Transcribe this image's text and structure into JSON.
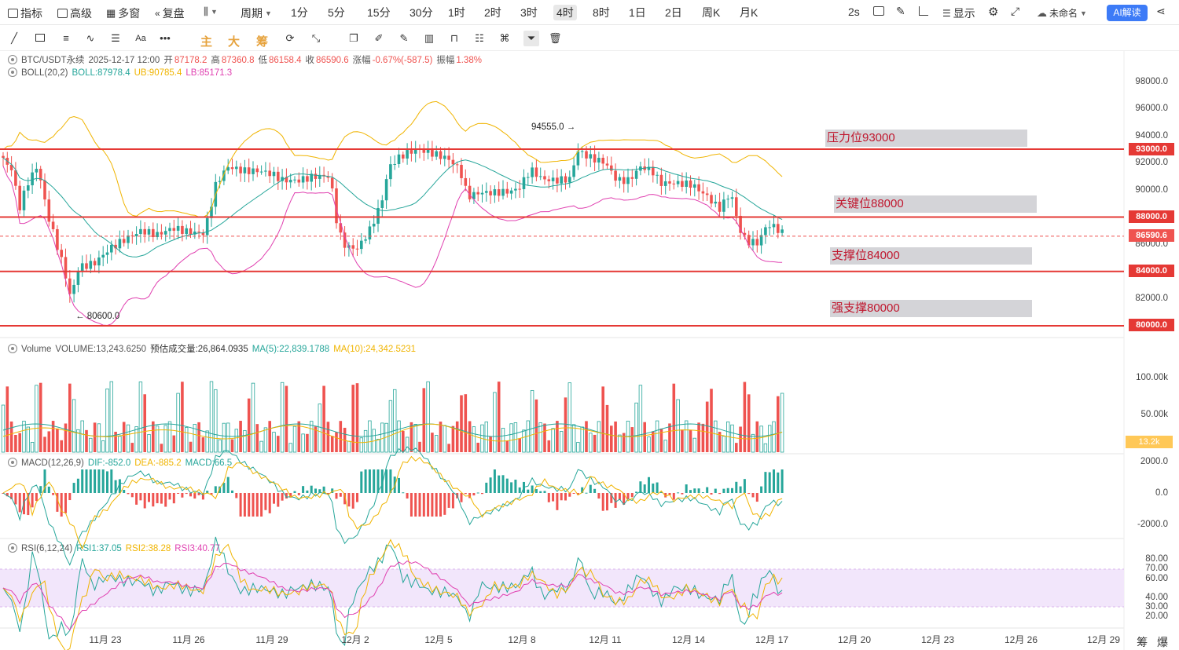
{
  "toolbar": {
    "indicators_label": "指标",
    "advanced_label": "高级",
    "multiwin_label": "多窗",
    "replay_label": "复盘",
    "period_label": "周期",
    "periods": [
      "1分",
      "5分",
      "15分",
      "30分",
      "1时",
      "2时",
      "3时",
      "4时",
      "8时",
      "1日",
      "2日",
      "周K",
      "月K"
    ],
    "active_period": "4时",
    "refresh_label": "2s",
    "display_label": "显示",
    "unnamed_label": "未命名",
    "ai_label": "AI解读"
  },
  "drawbar": {
    "main_label": "主",
    "big_label": "大",
    "chip_label": "筹"
  },
  "legend": {
    "symbol": "BTC/USDT永续",
    "datetime": "2025-12-17 12:00",
    "open_label": "开",
    "open": "87178.2",
    "high_label": "高",
    "high": "87360.8",
    "low_label": "低",
    "low": "86158.4",
    "close_label": "收",
    "close": "86590.6",
    "change_label": "涨幅",
    "change": "-0.67%(-587.5)",
    "amp_label": "振幅",
    "amp": "1.38%"
  },
  "boll": {
    "name": "BOLL(20,2)",
    "mid": "BOLL:87978.4",
    "ub": "UB:90785.4",
    "lb": "LB:85171.3"
  },
  "volume": {
    "name": "Volume",
    "vol": "VOLUME:13,243.6250",
    "est": "预估成交量:26,864.0935",
    "ma5": "MA(5):22,839.1788",
    "ma10": "MA(10):24,342.5231"
  },
  "macd": {
    "name": "MACD(12,26,9)",
    "dif": "DIF:-852.0",
    "dea": "DEA:-885.2",
    "macd": "MACD:66.5"
  },
  "rsi": {
    "name": "RSI(6,12,24)",
    "rsi1": "RSI1:37.05",
    "rsi2": "RSI2:38.28",
    "rsi3": "RSI3:40.77"
  },
  "price_axis": [
    "98000.0",
    "96000.0",
    "94000.0",
    "92000.0",
    "90000.0",
    "86000.0",
    "82000.0"
  ],
  "price_tags": {
    "p93000": "93000.0",
    "p88000": "88000.0",
    "current": "86590.6",
    "p84000": "84000.0",
    "p80000": "80000.0"
  },
  "zones": {
    "resistance": "压力位93000",
    "key": "关键位88000",
    "support": "支撑位84000",
    "strong": "强支撑80000"
  },
  "annotations": {
    "high": "94555.0",
    "low": "80600.0"
  },
  "vol_axis": [
    "100.00k",
    "50.00k"
  ],
  "vol_tag": "13.2k",
  "macd_axis": [
    "2000.0",
    "0.0",
    "-2000.0"
  ],
  "rsi_axis": [
    "80.00",
    "70.00",
    "60.00",
    "40.00",
    "30.00",
    "20.00"
  ],
  "x_labels": [
    "11月 23",
    "11月 26",
    "11月 29",
    "12月 2",
    "12月 5",
    "12月 8",
    "12月 11",
    "12月 14",
    "12月 17",
    "12月 20",
    "12月 23",
    "12月 26",
    "12月 29"
  ],
  "bottom_right": "筹 爆",
  "colors": {
    "up": "#26a69a",
    "down": "#ef5350",
    "line": "#e53935",
    "mid": "#26a69a",
    "ub": "#f0b400",
    "lb": "#e040b0",
    "accent": "#3d7bf7"
  }
}
